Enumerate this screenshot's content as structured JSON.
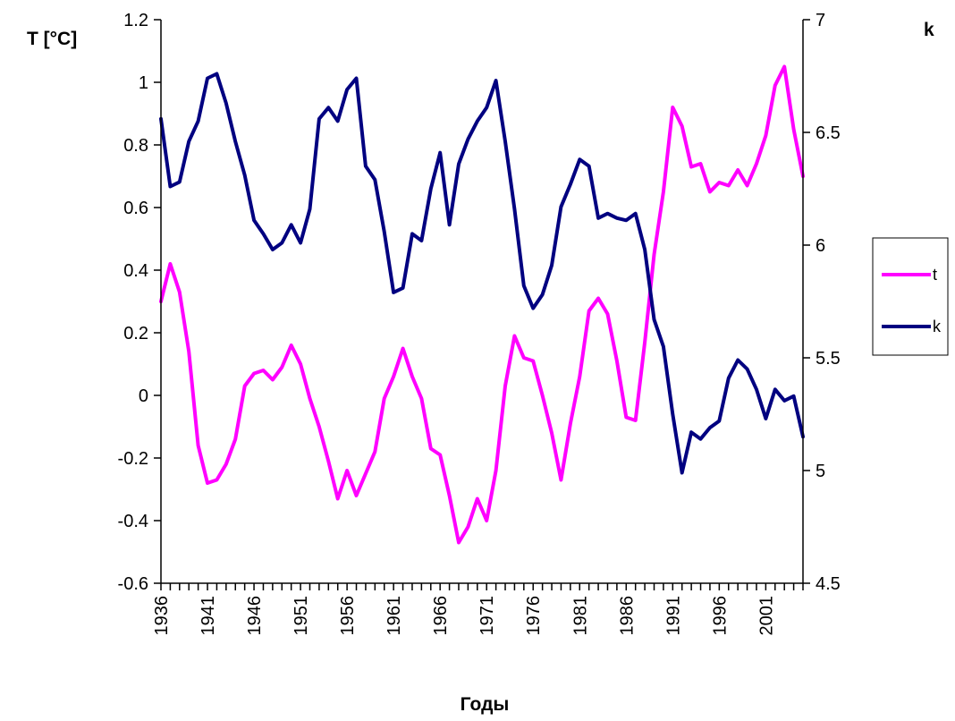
{
  "chart_data": {
    "type": "line",
    "title": "",
    "xlabel": "Годы",
    "ylabel_left": "T [°C]",
    "ylabel_right": "k",
    "x": [
      1936,
      1937,
      1938,
      1939,
      1940,
      1941,
      1942,
      1943,
      1944,
      1945,
      1946,
      1947,
      1948,
      1949,
      1950,
      1951,
      1952,
      1953,
      1954,
      1955,
      1956,
      1957,
      1958,
      1959,
      1960,
      1961,
      1962,
      1963,
      1964,
      1965,
      1966,
      1967,
      1968,
      1969,
      1970,
      1971,
      1972,
      1973,
      1974,
      1975,
      1976,
      1977,
      1978,
      1979,
      1980,
      1981,
      1982,
      1983,
      1984,
      1985,
      1986,
      1987,
      1988,
      1989,
      1990,
      1991,
      1992,
      1993,
      1994,
      1995,
      1996,
      1997,
      1998,
      1999,
      2000,
      2001,
      2002,
      2003,
      2004,
      2005
    ],
    "x_tick_labels": [
      "1936",
      "1941",
      "1946",
      "1951",
      "1956",
      "1961",
      "1966",
      "1971",
      "1976",
      "1981",
      "1986",
      "1991",
      "1996",
      "2001"
    ],
    "ylim_left": [
      -0.6,
      1.2
    ],
    "ylim_right": [
      4.5,
      7
    ],
    "y_left_ticks": [
      "-0.6",
      "-0.4",
      "-0.2",
      "0",
      "0.2",
      "0.4",
      "0.6",
      "0.8",
      "1",
      "1.2"
    ],
    "y_right_ticks": [
      "4.5",
      "5",
      "5.5",
      "6",
      "6.5",
      "7"
    ],
    "grid": false,
    "legend_position": "right",
    "series": [
      {
        "name": "t",
        "axis": "left",
        "color": "#ff00ff",
        "values": [
          0.3,
          0.42,
          0.33,
          0.14,
          -0.16,
          -0.28,
          -0.27,
          -0.22,
          -0.14,
          0.03,
          0.07,
          0.08,
          0.05,
          0.09,
          0.16,
          0.1,
          -0.01,
          -0.1,
          -0.21,
          -0.33,
          -0.24,
          -0.32,
          -0.25,
          -0.18,
          -0.01,
          0.06,
          0.15,
          0.06,
          -0.01,
          -0.17,
          -0.19,
          -0.32,
          -0.47,
          -0.42,
          -0.33,
          -0.4,
          -0.24,
          0.03,
          0.19,
          0.12,
          0.11,
          0.0,
          -0.12,
          -0.27,
          -0.09,
          0.06,
          0.27,
          0.31,
          0.26,
          0.11,
          -0.07,
          -0.08,
          0.17,
          0.45,
          0.65,
          0.92,
          0.86,
          0.73,
          0.74,
          0.65,
          0.68,
          0.67,
          0.72,
          0.67,
          0.74,
          0.83,
          0.99,
          1.05,
          0.85,
          0.7
        ]
      },
      {
        "name": "k",
        "axis": "right",
        "color": "#000080",
        "values": [
          6.56,
          6.26,
          6.28,
          6.46,
          6.55,
          6.74,
          6.76,
          6.63,
          6.46,
          6.31,
          6.11,
          6.05,
          5.98,
          6.01,
          6.09,
          6.01,
          6.16,
          6.56,
          6.61,
          6.55,
          6.69,
          6.74,
          6.35,
          6.29,
          6.06,
          5.79,
          5.81,
          6.05,
          6.02,
          6.25,
          6.41,
          6.09,
          6.36,
          6.47,
          6.55,
          6.61,
          6.73,
          6.46,
          6.16,
          5.82,
          5.72,
          5.78,
          5.91,
          6.17,
          6.27,
          6.38,
          6.35,
          6.12,
          6.14,
          6.12,
          6.11,
          6.14,
          5.98,
          5.67,
          5.55,
          5.25,
          4.99,
          5.17,
          5.14,
          5.19,
          5.22,
          5.41,
          5.49,
          5.45,
          5.36,
          5.23,
          5.36,
          5.31,
          5.33,
          5.15
        ]
      }
    ]
  }
}
